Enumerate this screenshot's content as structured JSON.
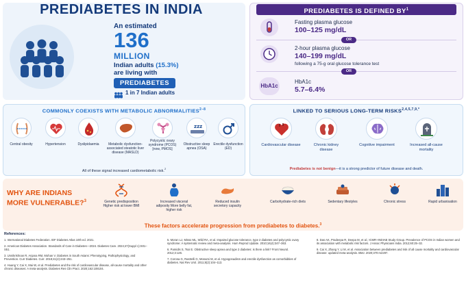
{
  "stats": {
    "title": "PREDIABETES IN INDIA",
    "pre": "An estimated",
    "number": "136",
    "unit": "MILLION",
    "line1_a": "Indian adults",
    "line1_pct": "(15.3%)",
    "line2": "are living with",
    "badge": "PREDIABETES",
    "ratio": "1 in 7 Indian adults"
  },
  "definition": {
    "header": "PREDIABETES IS DEFINED BY",
    "header_sup": "1",
    "items": [
      {
        "label": "Fasting plasma glucose",
        "value": "100–125 mg/dL",
        "note": ""
      },
      {
        "label": "2-hour plasma glucose",
        "value": "140–199 mg/dL",
        "note": "following a 75-g oral glucose tolerance test"
      },
      {
        "label": "HbA1c",
        "value": "5.7–6.4%",
        "note": ""
      }
    ],
    "or_label": "OR",
    "hba1c_icon_text": "HbA1c"
  },
  "coexist": {
    "title": "COMMONLY COEXISTS WITH METABOLIC ABNORMALITIES",
    "title_sup": "2–8",
    "items": [
      {
        "label": "Central obesity",
        "icon": "waist-icon"
      },
      {
        "label": "Hypertension",
        "icon": "heart-pressure-icon"
      },
      {
        "label": "Dyslipidaemia",
        "icon": "blood-drop-icon"
      },
      {
        "label": "Metabolic dysfunction-associated steatotic liver disease (MASLD)",
        "icon": "liver-icon"
      },
      {
        "label": "Polycystic ovary syndrome (PCOS) [now, PMOS]",
        "icon": "uterus-icon"
      },
      {
        "label": "Obstructive sleep apnea (OSA)",
        "icon": "sleep-icon"
      },
      {
        "label": "Erectile dysfunction (ED)",
        "icon": "male-symbol-icon"
      }
    ],
    "footer": "All of these signal increased cardiometabolic risk.",
    "footer_sup": "2"
  },
  "risks": {
    "title": "LINKED TO SERIOUS LONG-TERM RISKS",
    "title_sup": "2,4,5,7,9,*",
    "items": [
      {
        "label": "Cardiovascular disease",
        "icon": "heart-icon"
      },
      {
        "label": "Chronic kidney disease",
        "icon": "kidney-icon"
      },
      {
        "label": "Cognitive impairment",
        "icon": "brain-icon"
      },
      {
        "label": "Increased all-cause mortality",
        "icon": "tombstone-icon"
      }
    ],
    "footer_a": "Prediabetes is not benign",
    "footer_b": "—it is a strong predictor of future disease and death."
  },
  "vulnerability": {
    "title_line1": "WHY ARE INDIANS",
    "title_line2": "MORE VULNERABLE?",
    "title_sup": "3",
    "items": [
      {
        "label": "Genetic predisposition Higher risk at lower BMI",
        "icon": "dna-icon"
      },
      {
        "label": "Increased visceral adiposity More belly fat, higher risk",
        "icon": "belly-icon"
      },
      {
        "label": "Reduced insulin secretory capacity",
        "icon": "pancreas-icon"
      },
      {
        "label": "Carbohydrate-rich diets",
        "icon": "rice-bowl-icon"
      },
      {
        "label": "Sedentary lifestyles",
        "icon": "sofa-icon"
      },
      {
        "label": "Chronic stress",
        "icon": "stress-icon"
      },
      {
        "label": "Rapid urbanisation",
        "icon": "city-icon"
      }
    ],
    "footer": "These factors accelerate progression from prediabetes to diabetes.",
    "footer_sup": "3"
  },
  "references": {
    "title": "References:",
    "col1": [
      "1.   International Diabetes Federation. IDF Diabetes Atlas 10th ed. 2021.",
      "2.   American Diabetes Association. Standards of Care in Diabetes—2024. Diabetes Care. 2024;47(Suppl 1):S01–S51.",
      "3.   Unnikrishnan R, Anjana RM, Mohan V. Diabetes in South Asians: Phenotyping, Pathophysiology, and Prevention. Curr Diabetes. Curr. 2018;41(2):243–251.",
      "4.   Huang Y, Cai X, Mai W, et al. Prediabetes and the risk of cardiovascular disease, all-cause mortality and other chronic diseases: A meta-analysis. Diabetes Res Clin Pract. 2020;162:108104."
    ],
    "col2": [
      "5.   Moran LJ, Misso ML, Wild RA, et al. Impaired glucose tolerance, type 2 diabetes and polycystic ovary syndrome: A systematic review and meta-analysis. Hum Reprod Update. 2010;16(4):347–363.",
      "6.   Pamidis S, Tsoi E. Obstructive sleep apnea and type 2 diabetes: is there a link? Front Neurol. 2012;3:126.",
      "7.   Corona G, Rastrelli G, Monami M, et al. Hypogonadism and erectile dysfunction as comorbidities of diabetes. Nat Rev Urol. 2011;8(2):104–113."
    ],
    "col3": [
      "8.   Das AK, Pradeepa R, Deepa M, et al.; ICMR–INDIAB Study Group. Prevalence of PCOS in Indian women and its association with metabolic risk factors. J Assoc Physicians India. 2012;60:25–32.",
      "9.   Cai X, Zhang Y, Li M, et al. Association between prediabetes and risk of all cause mortality and cardiovascular disease: updated meta-analysis. BMJ. 2020;370:m2297."
    ]
  },
  "colors": {
    "navy": "#143a7a",
    "blue": "#1f6fc9",
    "purple": "#4b2a86",
    "orange": "#e2530f",
    "red": "#c23a3a"
  }
}
